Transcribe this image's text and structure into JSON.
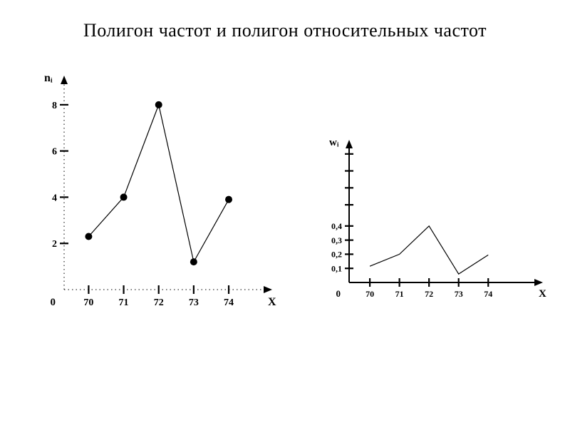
{
  "title": "Полигон частот и полигон относительных частот",
  "background_color": "#ffffff",
  "text_color": "#000000",
  "title_fontsize": 26,
  "left_chart": {
    "type": "line",
    "y_axis_label": "nᵢ",
    "x_axis_label": "X",
    "axis_label_fontsize": 16,
    "tick_fontsize": 14,
    "line_color": "#000000",
    "marker_color": "#000000",
    "marker_radius": 5,
    "line_width": 1.2,
    "axis_width": 2,
    "x_values": [
      70,
      71,
      72,
      73,
      74
    ],
    "y_values": [
      2.3,
      4.0,
      8.0,
      1.2,
      3.9
    ],
    "x_ticks": [
      70,
      71,
      72,
      73,
      74
    ],
    "y_ticks": [
      2,
      4,
      6,
      8
    ],
    "y_zero_label": "0",
    "xlim": [
      69.3,
      75.2
    ],
    "ylim": [
      0,
      9.2
    ],
    "show_markers": true,
    "dotted_guides": true
  },
  "right_chart": {
    "type": "line",
    "y_axis_label": "wᵢ",
    "x_axis_label": "X",
    "axis_label_fontsize": 15,
    "tick_fontsize": 12,
    "line_color": "#000000",
    "marker_color": "#000000",
    "marker_radius": 0,
    "line_width": 1.2,
    "axis_width": 2,
    "x_values": [
      70,
      71,
      72,
      73,
      74
    ],
    "y_values": [
      0.115,
      0.2,
      0.4,
      0.06,
      0.195
    ],
    "x_ticks": [
      70,
      71,
      72,
      73,
      74
    ],
    "y_ticks": [
      0.1,
      0.2,
      0.3,
      0.4
    ],
    "y_tick_labels": [
      "0,1",
      "0,2",
      "0,3",
      "0,4"
    ],
    "y_zero_label": "0",
    "upper_ticks": [
      0.55,
      0.67,
      0.79,
      0.91
    ],
    "xlim": [
      69.3,
      75.8
    ],
    "ylim": [
      0,
      1.0
    ],
    "show_markers": false,
    "dotted_guides": false
  }
}
